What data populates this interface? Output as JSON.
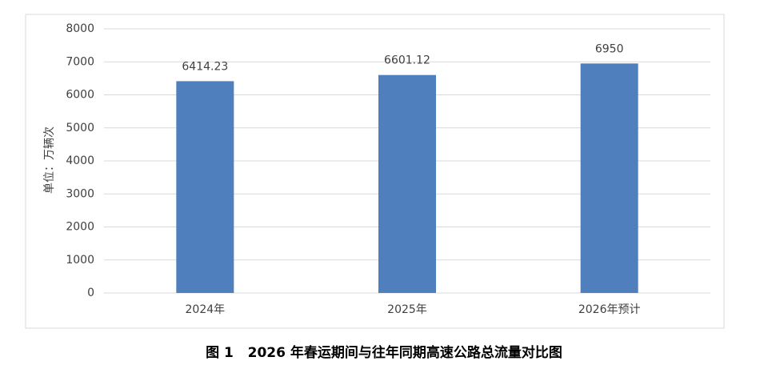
{
  "chart_data": {
    "type": "bar",
    "y_axis_label": "单位：万辆次",
    "caption": "图 1   2026 年春运期间与往年同期高速公路总流量对比图",
    "categories": [
      "2024年",
      "2025年",
      "2026年预计"
    ],
    "values": [
      6414.23,
      6601.12,
      6950
    ],
    "color": "#4f7fbd",
    "ylim": [
      0,
      8000
    ],
    "yticks": [
      0,
      1000,
      2000,
      3000,
      4000,
      5000,
      6000,
      7000,
      8000
    ],
    "grid": true
  }
}
